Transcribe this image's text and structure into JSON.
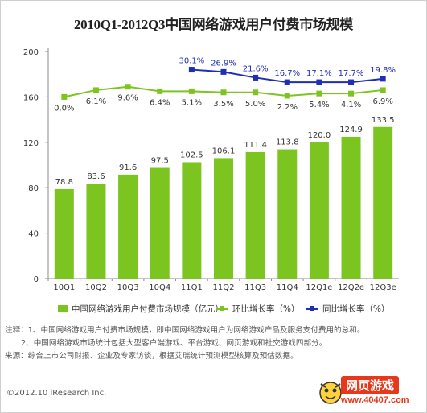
{
  "title": "2010Q1-2012Q3中国网络游戏用户付费市场规模",
  "chart_data": {
    "type": "bar+line",
    "categories": [
      "10Q1",
      "10Q2",
      "10Q3",
      "10Q4",
      "11Q1",
      "11Q2",
      "11Q3",
      "11Q4",
      "12Q1e",
      "12Q2e",
      "12Q3e"
    ],
    "series": [
      {
        "name": "中国网络游戏用户付费市场规模（亿元）",
        "type": "bar",
        "color": "#7cc520",
        "values": [
          78.8,
          83.6,
          91.6,
          97.5,
          102.5,
          106.1,
          111.4,
          113.8,
          120.0,
          124.9,
          133.5
        ],
        "labels": [
          "78.8",
          "83.6",
          "91.6",
          "97.5",
          "102.5",
          "106.1",
          "111.4",
          "113.8",
          "120.0",
          "124.9",
          "133.5"
        ]
      },
      {
        "name": "环比增长率（%）",
        "type": "line",
        "color": "#7cc520",
        "values": [
          160,
          166,
          169,
          165,
          165,
          164,
          164,
          161,
          163,
          163,
          166
        ],
        "labels": [
          "0.0%",
          "6.1%",
          "9.6%",
          "6.4%",
          "5.1%",
          "3.5%",
          "5.0%",
          "2.2%",
          "5.4%",
          "4.1%",
          "6.9%"
        ]
      },
      {
        "name": "同比增长率（%）",
        "type": "line",
        "color": "#1e2fb4",
        "values": [
          null,
          null,
          null,
          null,
          184,
          182,
          177,
          173,
          173,
          173,
          176
        ],
        "labels": [
          null,
          null,
          null,
          null,
          "30.1%",
          "26.9%",
          "21.6%",
          "16.7%",
          "17.1%",
          "17.7%",
          "19.8%"
        ]
      }
    ],
    "yticks": [
      "0",
      "40",
      "80",
      "120",
      "160",
      "200"
    ],
    "ylim": [
      0,
      200
    ],
    "grid": false
  },
  "notes": [
    "注释：1、中国网络游戏用户付费市场规模，即中国网络游戏用户为网络游戏产品及服务支付费用的总和。",
    "2、中国网络游戏市场统计包括大型客户端游戏、平台游戏、网页游戏和社交游戏四部分。",
    "来源：综合上市公司财报、企业及专家访谈，根据艾瑞统计预测模型核算及预估数据。"
  ],
  "copyright": "©2012.10 iResearch Inc.",
  "watermark": {
    "title": "网页游戏",
    "url": "www.40407.com"
  }
}
